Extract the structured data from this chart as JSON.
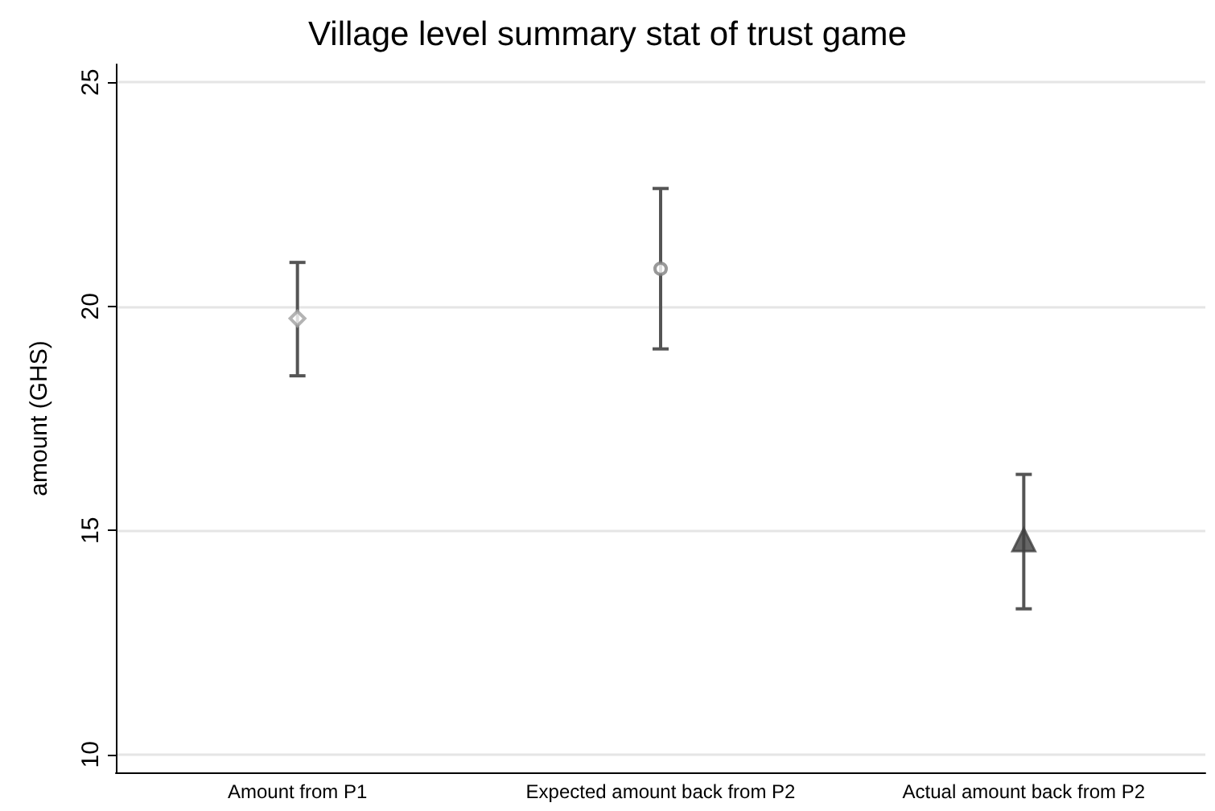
{
  "chart_data": {
    "type": "scatter",
    "title": "Village level summary stat of trust game",
    "ylabel": "amount (GHS)",
    "categories": [
      "Amount from P1",
      "Expected amount back from P2",
      "Actual amount back from P2"
    ],
    "series": [
      {
        "color": "#a0a0a0",
        "marker": "diamond",
        "values": [
          19.73,
          null,
          null
        ],
        "errors": [
          [
            18.45,
            20.98
          ],
          null,
          null
        ]
      },
      {
        "color": "#808080",
        "marker": "circle",
        "values": [
          null,
          20.84,
          null
        ],
        "errors": [
          null,
          [
            19.05,
            22.63
          ],
          null
        ]
      },
      {
        "color": "#404040",
        "marker": "triangle",
        "values": [
          null,
          null,
          14.79
        ],
        "errors": [
          null,
          null,
          [
            13.25,
            16.25
          ]
        ]
      }
    ],
    "ylim": [
      9.6,
      25.4
    ],
    "yticks": [
      10,
      15,
      20,
      25
    ],
    "grid": "y"
  }
}
